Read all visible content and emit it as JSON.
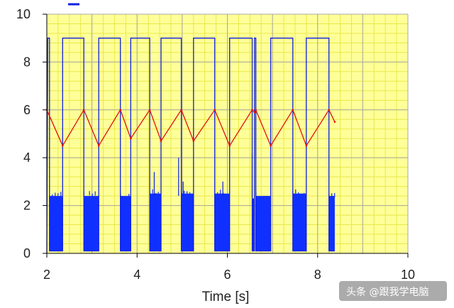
{
  "watermark": "头条 @跟我学电脑",
  "chart_data": {
    "type": "line",
    "xlabel": "Time [s]",
    "ylabel": "",
    "title": "",
    "xlim": [
      2,
      10
    ],
    "ylim": [
      0,
      10
    ],
    "xticks": [
      2,
      4,
      6,
      8,
      10
    ],
    "yticks": [
      0,
      2,
      4,
      6,
      8,
      10
    ],
    "x_tick_labels": [
      "2",
      "4",
      "6",
      "8",
      "10"
    ],
    "y_tick_labels": [
      "0",
      "2",
      "4",
      "6",
      "8",
      "10"
    ],
    "grid": true,
    "colors": {
      "background": "#ffff99",
      "grid_fine": "#e8e84a",
      "grid_major": "#a8a8a8",
      "axis": "#000000",
      "square_wave": "#1020e0",
      "triangle_wave": "#e01010",
      "noise_band": "#1030ff"
    },
    "series": [
      {
        "color": "#1020e0",
        "style": "square-wave",
        "x": [
          2.0,
          2.02,
          2.06,
          2.06,
          2.35,
          2.35,
          2.82,
          2.82,
          3.15,
          3.15,
          3.63,
          3.63,
          3.86,
          3.86,
          4.28,
          4.28,
          4.53,
          4.53,
          4.98,
          4.98,
          5.25,
          5.25,
          5.72,
          5.72,
          6.05,
          6.05,
          6.55,
          6.55,
          6.6,
          6.6,
          6.63,
          6.63,
          6.96,
          6.96,
          7.45,
          7.45,
          7.75,
          7.75,
          8.25,
          8.25,
          8.38
        ],
        "y": [
          0,
          9.0,
          9.0,
          0.1,
          0.1,
          9.0,
          9.0,
          0.1,
          0.1,
          9.0,
          9.0,
          0.1,
          0.1,
          9.0,
          9.0,
          0.1,
          0.1,
          9.0,
          9.0,
          0.1,
          0.1,
          9.0,
          9.0,
          0.1,
          0.1,
          9.0,
          9.0,
          0.1,
          0.1,
          9.0,
          9.0,
          0.1,
          0.1,
          9.0,
          9.0,
          0.1,
          0.1,
          9.0,
          9.0,
          0.1,
          0.1
        ]
      },
      {
        "color": "#e01010",
        "style": "triangle-wave",
        "x": [
          2.0,
          2.35,
          2.82,
          3.15,
          3.63,
          3.86,
          4.28,
          4.53,
          4.98,
          5.25,
          5.72,
          6.05,
          6.55,
          6.6,
          6.63,
          6.96,
          7.45,
          7.75,
          8.25,
          8.38
        ],
        "y": [
          6.0,
          4.5,
          6.0,
          4.5,
          6.0,
          4.8,
          6.0,
          4.7,
          6.0,
          4.7,
          6.0,
          4.5,
          6.0,
          5.9,
          6.0,
          4.5,
          6.0,
          4.5,
          6.0,
          5.5
        ]
      }
    ],
    "noise_bands": [
      {
        "x_start": 2.06,
        "x_end": 2.35,
        "y_top": 2.4
      },
      {
        "x_start": 2.82,
        "x_end": 3.15,
        "y_top": 2.4
      },
      {
        "x_start": 3.63,
        "x_end": 3.86,
        "y_top": 2.4
      },
      {
        "x_start": 4.28,
        "x_end": 4.53,
        "y_top": 2.5
      },
      {
        "x_start": 4.98,
        "x_end": 5.25,
        "y_top": 2.5
      },
      {
        "x_start": 5.72,
        "x_end": 6.05,
        "y_top": 2.5
      },
      {
        "x_start": 6.55,
        "x_end": 6.6,
        "y_top": 2.3
      },
      {
        "x_start": 6.63,
        "x_end": 6.96,
        "y_top": 2.4
      },
      {
        "x_start": 7.45,
        "x_end": 7.75,
        "y_top": 2.5
      },
      {
        "x_start": 8.25,
        "x_end": 8.38,
        "y_top": 2.4
      }
    ],
    "spikes": [
      {
        "x": 4.38,
        "y": 3.4
      },
      {
        "x": 4.92,
        "y": 4.0
      },
      {
        "x": 5.02,
        "y": 3.0
      },
      {
        "x": 5.9,
        "y": 3.0
      },
      {
        "x": 6.55,
        "y": 4.2
      }
    ]
  }
}
